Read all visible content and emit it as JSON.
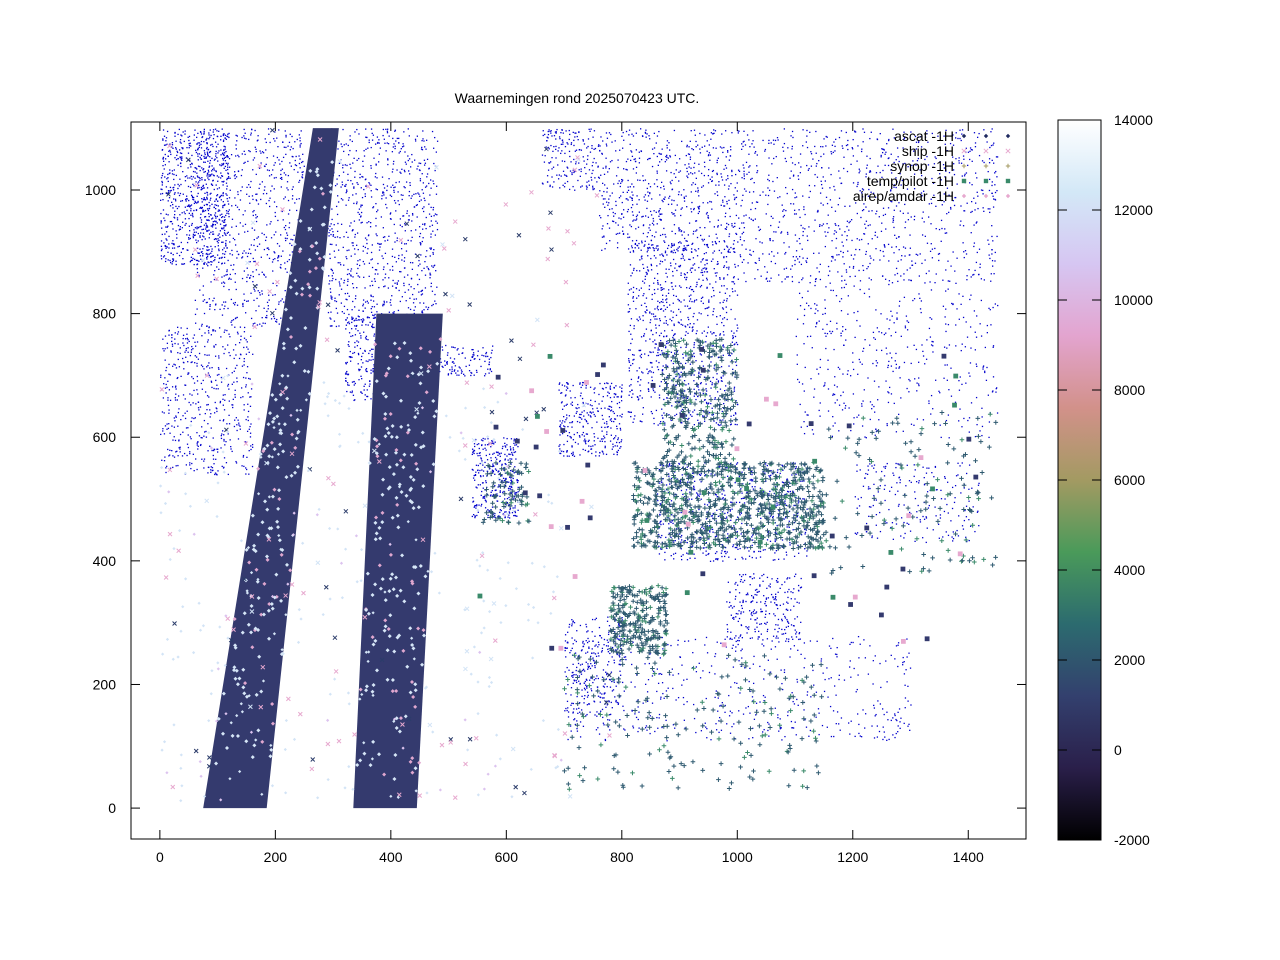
{
  "chart_data": {
    "type": "scatter",
    "title": "Waarnemingen rond 2025070423 UTC.",
    "xlabel": "",
    "ylabel": "",
    "xlim": [
      -50,
      1500
    ],
    "ylim": [
      -50,
      1110
    ],
    "x_ticks": [
      0,
      200,
      400,
      600,
      800,
      1000,
      1200,
      1400
    ],
    "y_ticks": [
      0,
      200,
      400,
      600,
      800,
      1000
    ],
    "grid": false,
    "legend_position": "top-right",
    "series": [
      {
        "name": "ascat -1H",
        "marker": "diamond"
      },
      {
        "name": "ship -1H",
        "marker": "x"
      },
      {
        "name": "synop -1H",
        "marker": "plus"
      },
      {
        "name": "temp/pilot -1H",
        "marker": "square"
      },
      {
        "name": "airep/amdar -1H",
        "marker": "diamond-small"
      }
    ],
    "colorbar": {
      "min": -2000,
      "max": 14000,
      "ticks": [
        -2000,
        0,
        2000,
        4000,
        6000,
        8000,
        10000,
        12000,
        14000
      ],
      "colors": [
        "#000000",
        "#2a1f4a",
        "#33406e",
        "#2c6b6f",
        "#4a9a5a",
        "#a39a62",
        "#d2918a",
        "#e3a4cf",
        "#d6c6f2",
        "#d3e8f7",
        "#ffffff"
      ]
    },
    "ascat_swaths": [
      {
        "x_bottom": [
          75,
          185
        ],
        "x_top": [
          265,
          310
        ],
        "y_range": [
          0,
          1100
        ]
      },
      {
        "x_bottom": [
          335,
          445
        ],
        "x_top": [
          375,
          490
        ],
        "y_range": [
          0,
          800
        ]
      }
    ],
    "coastline_color": "#0000cc"
  }
}
